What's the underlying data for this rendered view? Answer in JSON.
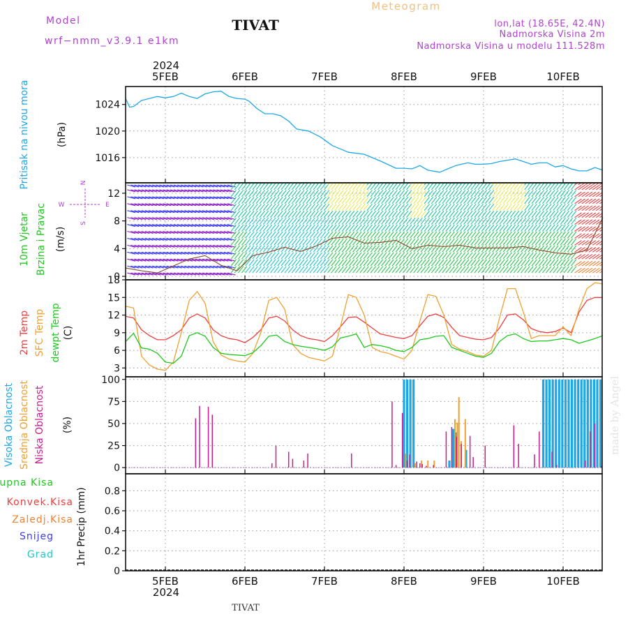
{
  "header": {
    "model_label": "Model",
    "model_name": "wrf−nmm_v3.9.1  e1km",
    "station": "TIVAT",
    "product": "Meteogram",
    "coords": "lon,lat (18.65E, 42.4N)",
    "elevation": "Nadmorska Visina 2m",
    "model_elevation": "Nadmorska Visina u modelu 111.528m"
  },
  "footer": {
    "station": "TIVAT",
    "watermark": "made by Angel"
  },
  "time_axis": {
    "year": "2024",
    "labels": [
      "5FEB",
      "6FEB",
      "7FEB",
      "8FEB",
      "9FEB",
      "10FEB"
    ],
    "label_days": [
      0.5,
      1.5,
      2.5,
      3.5,
      4.5,
      5.5
    ],
    "start": "2024-02-04 12:00",
    "end": "2024-02-10 12:00"
  },
  "colors": {
    "pressure": "#1ea7e6",
    "temp2m": "#f03c3c",
    "sfc_temp": "#f0a030",
    "dewpt": "#1ec81e",
    "cloud_high": "#1ea7e6",
    "cloud_mid": "#f0a030",
    "cloud_low": "#c81e8c",
    "wind_label": "#1ec81e",
    "wind_compass": "#b040d0",
    "precip_total": "#1ec81e",
    "precip_conv": "#f03c3c",
    "precip_frz": "#f08030",
    "precip_snow": "#3c3cf0",
    "precip_hail": "#1ec8c8",
    "header_purple": "#b040d0",
    "header_orange": "#f0c080"
  },
  "chart_data": [
    {
      "type": "line",
      "panel": "pressure",
      "title": "",
      "ylabel_lines": [
        "Pritisak na nivou mora",
        "(hPa)"
      ],
      "ylim": [
        1012.2,
        1026.7
      ],
      "yticks": [
        1016,
        1020,
        1024
      ],
      "grid": true,
      "series": [
        {
          "name": "Pritisak na nivou mora",
          "x": [
            0,
            0.05,
            0.1,
            0.2,
            0.3,
            0.4,
            0.5,
            0.6,
            0.7,
            0.8,
            0.9,
            1.0,
            1.1,
            1.2,
            1.3,
            1.4,
            1.5,
            1.55,
            1.65,
            1.75,
            1.85,
            1.95,
            2.05,
            2.15,
            2.3,
            2.45,
            2.6,
            2.8,
            3.0,
            3.2,
            3.4,
            3.5,
            3.6,
            3.7,
            3.8,
            3.95,
            4.05,
            4.15,
            4.3,
            4.4,
            4.5,
            4.6,
            4.7,
            4.8,
            4.9,
            5.0,
            5.1,
            5.2,
            5.3,
            5.4,
            5.5,
            5.6,
            5.7,
            5.8,
            5.9,
            6.0
          ],
          "values": [
            1024.9,
            1023.6,
            1023.7,
            1024.6,
            1024.9,
            1025.2,
            1025.0,
            1025.2,
            1025.7,
            1025.2,
            1024.9,
            1025.6,
            1025.9,
            1026.0,
            1025.2,
            1024.9,
            1024.8,
            1024.5,
            1023.4,
            1022.6,
            1022.6,
            1022.3,
            1021.5,
            1020.3,
            1020.0,
            1019.1,
            1017.8,
            1016.8,
            1016.5,
            1015.5,
            1014.4,
            1014.4,
            1014.3,
            1014.8,
            1014.1,
            1013.8,
            1014.3,
            1014.8,
            1015.2,
            1015.0,
            1015.0,
            1015.1,
            1015.4,
            1015.6,
            1015.8,
            1015.4,
            1015.0,
            1015.2,
            1015.2,
            1014.6,
            1014.8,
            1014.3,
            1014.0,
            1014.0,
            1014.5,
            1014.1
          ]
        }
      ]
    },
    {
      "type": "barbs",
      "panel": "wind",
      "title": "",
      "ylabel_lines": [
        "10m Vjetar",
        "Brzina i Pravac",
        "(m/s)"
      ],
      "compass": {
        "north": "N",
        "south": "S",
        "west": "W",
        "east": "E"
      },
      "ylim": [
        -0.5,
        13.5
      ],
      "yticks": [
        0,
        4,
        8,
        12
      ],
      "grid": true,
      "barb_levels": [
        0.5,
        1.5,
        2.5,
        3.5,
        4.5,
        5.5,
        6.5,
        7.5,
        8.5,
        9.5,
        10.5,
        11.5,
        12.5,
        13.2
      ],
      "speed_line": {
        "name": "wind speed",
        "x": [
          0,
          0.2,
          0.4,
          0.6,
          0.8,
          1.0,
          1.2,
          1.4,
          1.6,
          1.8,
          2.0,
          2.2,
          2.4,
          2.6,
          2.8,
          3.0,
          3.2,
          3.4,
          3.6,
          3.8,
          4.0,
          4.2,
          4.4,
          4.6,
          4.8,
          5.0,
          5.2,
          5.4,
          5.6,
          5.8,
          6.0
        ],
        "values": [
          1.2,
          0.8,
          0.5,
          1.5,
          2.5,
          3.0,
          1.6,
          0.8,
          3.0,
          3.5,
          4.2,
          3.6,
          4.4,
          5.5,
          5.7,
          4.8,
          4.9,
          5.2,
          4.0,
          4.5,
          4.3,
          4.5,
          4.1,
          4.1,
          4.1,
          4.3,
          3.8,
          3.4,
          3.2,
          3.8,
          8.5
        ]
      }
    },
    {
      "type": "line",
      "panel": "temperature",
      "title": "",
      "ylabel_lines": [
        "2m Temp",
        "SFC Temp",
        "dewpt Temp",
        "(C)"
      ],
      "ylim": [
        1.5,
        18
      ],
      "yticks": [
        3,
        6,
        9,
        12,
        15,
        18
      ],
      "grid": true,
      "x": [
        0,
        0.1,
        0.2,
        0.3,
        0.4,
        0.5,
        0.6,
        0.7,
        0.8,
        0.9,
        1.0,
        1.1,
        1.2,
        1.3,
        1.4,
        1.5,
        1.6,
        1.7,
        1.8,
        1.9,
        2.0,
        2.1,
        2.2,
        2.3,
        2.4,
        2.5,
        2.6,
        2.7,
        2.8,
        2.9,
        3.0,
        3.1,
        3.2,
        3.3,
        3.4,
        3.5,
        3.6,
        3.7,
        3.8,
        3.9,
        4.0,
        4.1,
        4.2,
        4.3,
        4.4,
        4.5,
        4.6,
        4.7,
        4.8,
        4.9,
        5.0,
        5.1,
        5.2,
        5.3,
        5.4,
        5.5,
        5.6,
        5.7,
        5.8,
        5.9,
        6.0
      ],
      "series": [
        {
          "name": "2m Temp",
          "values": [
            11.8,
            11.5,
            9.5,
            8.5,
            7.8,
            7.8,
            8.5,
            9.5,
            11.5,
            12.2,
            11.5,
            9.5,
            8.5,
            8.0,
            7.8,
            7.3,
            8.2,
            9.5,
            11.5,
            11.8,
            11.0,
            9.5,
            8.5,
            8.0,
            7.8,
            7.5,
            8.5,
            10.0,
            11.6,
            11.7,
            10.8,
            9.8,
            8.8,
            8.5,
            8.2,
            8.0,
            8.5,
            10.2,
            11.8,
            12.2,
            11.6,
            9.9,
            8.5,
            8.2,
            7.9,
            7.8,
            8.2,
            9.8,
            12.0,
            12.2,
            11.2,
            9.7,
            9.2,
            9.0,
            9.2,
            9.8,
            9.0,
            12.5,
            14.5,
            15.0,
            15.0
          ]
        },
        {
          "name": "SFC Temp",
          "values": [
            13.5,
            13.2,
            5.0,
            3.5,
            2.8,
            2.6,
            4.0,
            9.0,
            14.5,
            16.0,
            14.0,
            7.5,
            5.2,
            4.5,
            4.2,
            4.0,
            5.5,
            9.0,
            14.5,
            15.0,
            13.0,
            7.0,
            5.5,
            4.8,
            4.5,
            4.2,
            5.0,
            10.0,
            15.5,
            15.0,
            12.0,
            6.5,
            5.8,
            5.5,
            5.0,
            4.5,
            6.0,
            11.0,
            15.5,
            15.2,
            12.0,
            7.0,
            6.2,
            5.8,
            5.2,
            5.0,
            6.0,
            11.5,
            16.5,
            16.5,
            12.5,
            8.0,
            8.5,
            8.5,
            8.5,
            10.0,
            8.5,
            13.0,
            16.5,
            17.5,
            17.3
          ]
        },
        {
          "name": "dewpt Temp",
          "values": [
            7.5,
            8.9,
            6.4,
            6.2,
            5.5,
            4.0,
            3.8,
            5.0,
            8.5,
            9.0,
            8.4,
            6.5,
            5.5,
            5.3,
            5.2,
            5.1,
            5.6,
            6.8,
            8.4,
            8.6,
            7.5,
            7.0,
            6.7,
            6.5,
            6.3,
            6.0,
            6.6,
            8.1,
            8.4,
            8.8,
            6.5,
            7.0,
            6.8,
            6.5,
            6.0,
            5.8,
            6.5,
            7.8,
            8.0,
            8.4,
            8.5,
            6.5,
            6.0,
            5.5,
            5.0,
            4.8,
            5.5,
            7.5,
            8.5,
            8.8,
            8.0,
            7.5,
            7.6,
            7.6,
            7.8,
            8.0,
            7.8,
            7.2,
            7.6,
            8.0,
            8.5
          ]
        }
      ]
    },
    {
      "type": "bar",
      "panel": "cloud",
      "title": "",
      "ylabel_lines": [
        "Visoka Oblacnost",
        "Srednja Oblacnost",
        "Niska Oblacnost",
        "(%)"
      ],
      "ylim": [
        -7,
        103
      ],
      "yticks": [
        0,
        25,
        50,
        75,
        100
      ],
      "grid": true,
      "series": [
        {
          "name": "Niska Oblacnost",
          "x": [
            0.88,
            0.93,
            1.04,
            1.09,
            1.84,
            1.89,
            2.05,
            2.1,
            2.24,
            2.29,
            2.84,
            3.35,
            3.4,
            3.48,
            3.54,
            3.57,
            3.66,
            3.7,
            3.73,
            3.78,
            3.87,
            4.03,
            4.1,
            4.16,
            4.22,
            4.33,
            4.37,
            4.52,
            4.88,
            4.94,
            5.14,
            5.2,
            5.36,
            5.42,
            5.78,
            5.84,
            5.9,
            5.98
          ],
          "values": [
            56,
            70,
            69,
            60,
            5,
            25,
            18,
            10,
            8,
            16,
            16,
            75,
            3,
            62,
            8,
            15,
            7,
            5,
            4,
            2,
            3,
            41,
            46,
            35,
            27,
            36,
            12,
            25,
            48,
            27,
            15,
            41,
            18,
            3,
            8,
            41,
            50,
            2
          ]
        },
        {
          "name": "Srednja Oblacnost",
          "x": [
            3.52,
            3.64,
            3.72,
            3.8,
            3.88,
            4.14,
            4.17,
            4.19,
            4.22,
            4.27
          ],
          "values": [
            16,
            5,
            8,
            8,
            8,
            55,
            51,
            80,
            30,
            55
          ]
        },
        {
          "name": "Visoka Oblacnost",
          "x": [
            3.5,
            3.54,
            3.58,
            3.62,
            4.07,
            4.12,
            4.15,
            4.28,
            5.25,
            5.29,
            5.33,
            5.37,
            5.41,
            5.45,
            5.49,
            5.53,
            5.57,
            5.61,
            5.65,
            5.69,
            5.73,
            5.77,
            5.81,
            5.85,
            5.89,
            5.93,
            5.97
          ],
          "values": [
            100,
            100,
            100,
            100,
            8,
            44,
            40,
            20,
            100,
            100,
            100,
            100,
            100,
            100,
            100,
            100,
            100,
            100,
            100,
            100,
            100,
            100,
            100,
            100,
            100,
            100,
            100
          ]
        }
      ]
    },
    {
      "type": "bar",
      "panel": "precipitation",
      "title": "",
      "ylabel_lines": [
        "1hr Precip (mm)"
      ],
      "legend": [
        "Ukupna Kisa",
        "Konvek.Kisa",
        "Zaledj.Kisa",
        "Snijeg",
        "Grad"
      ],
      "ylim": [
        0,
        0.97
      ],
      "yticks": [
        0,
        0.2,
        0.4,
        0.6,
        0.8
      ],
      "ytick_labels": [
        "0",
        "0.2",
        "0.4",
        "0.6",
        "0.8"
      ],
      "grid": true,
      "series": []
    }
  ]
}
